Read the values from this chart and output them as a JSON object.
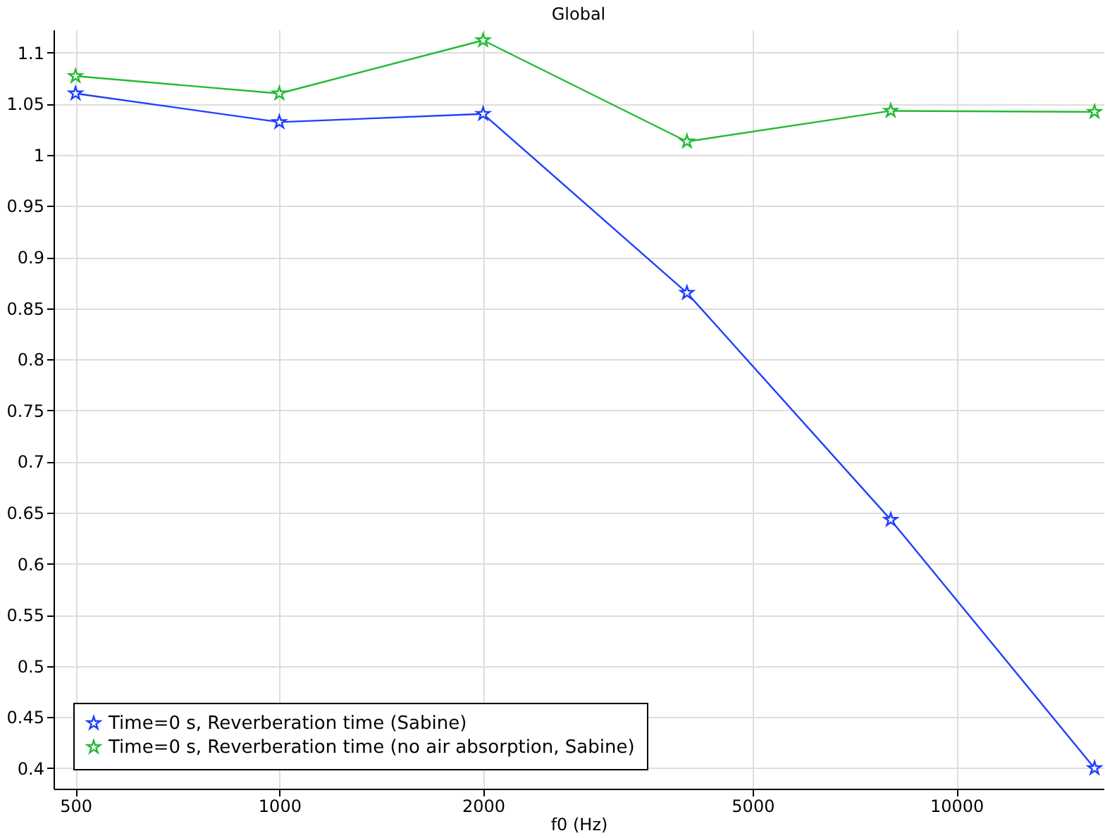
{
  "chart_data": {
    "type": "line",
    "title": "Global",
    "xlabel": "f0 (Hz)",
    "log": "x",
    "x": [
      500,
      1000,
      2000,
      4000,
      8000,
      16000
    ],
    "series": [
      {
        "name": "Time=0 s, Reverberation time (Sabine)",
        "color": "#1f3fff",
        "values": [
          1.06,
          1.032,
          1.04,
          0.865,
          0.643,
          0.4
        ]
      },
      {
        "name": "Time=0 s, Reverberation time (no air absorption, Sabine)",
        "color": "#22bb33",
        "values": [
          1.077,
          1.06,
          1.112,
          1.013,
          1.043,
          1.042
        ]
      }
    ],
    "xlim": [
      464,
      16500
    ],
    "xticks": [
      500,
      1000,
      2000,
      5000,
      10000
    ],
    "ylim": [
      0.38,
      1.1225
    ],
    "yticks": [
      0.4,
      0.45,
      0.5,
      0.55,
      0.6,
      0.65,
      0.7,
      0.75,
      0.8,
      0.85,
      0.9,
      0.95,
      1,
      1.05,
      1.1
    ],
    "grid": true,
    "legend": "bottom left",
    "marker": "star",
    "line_style": "solid"
  }
}
